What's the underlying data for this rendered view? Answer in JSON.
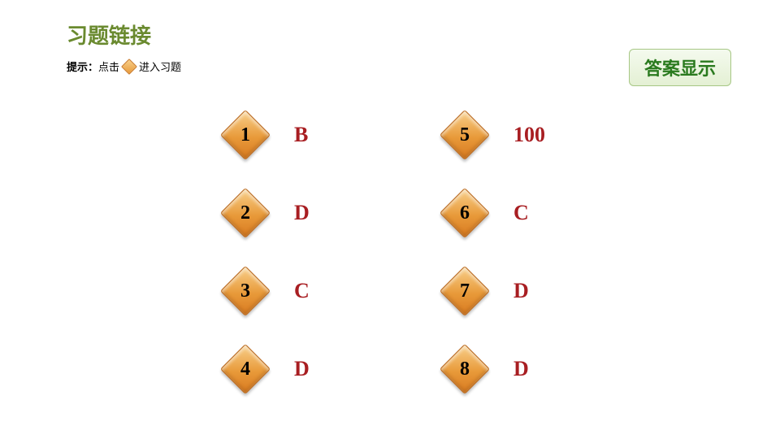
{
  "colors": {
    "title": "#6a8a2f",
    "answer": "#a81e22",
    "answer_btn_text": "#2a7a1e",
    "hint_text": "#000000"
  },
  "title": "习题链接",
  "hint": {
    "label": "提示：",
    "before": "点击",
    "after": "进入习题"
  },
  "answer_button": "答案显示",
  "items": [
    {
      "num": "1",
      "ans": "B"
    },
    {
      "num": "2",
      "ans": "D"
    },
    {
      "num": "3",
      "ans": "C"
    },
    {
      "num": "4",
      "ans": "D"
    },
    {
      "num": "5",
      "ans": "100"
    },
    {
      "num": "6",
      "ans": "C"
    },
    {
      "num": "7",
      "ans": "D"
    },
    {
      "num": "8",
      "ans": "D"
    }
  ],
  "layout": {
    "type": "infographic",
    "rows": 4,
    "cols": 2,
    "diamond_fill": [
      "#f8cf8a",
      "#e89a3a",
      "#d87a20"
    ],
    "diamond_border": "#b86518",
    "num_fontsize": 24,
    "answer_fontsize": 26,
    "title_fontsize": 26
  }
}
